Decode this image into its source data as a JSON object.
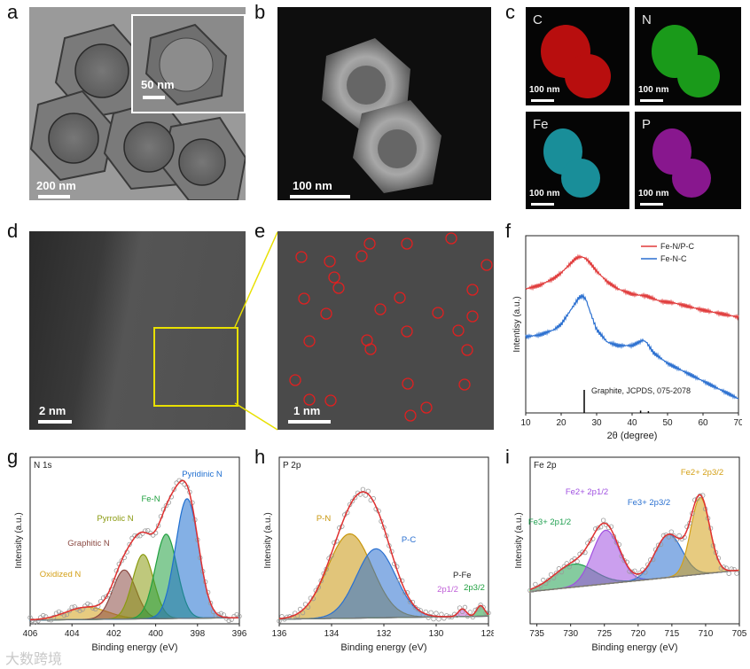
{
  "panels": {
    "a": {
      "label": "a",
      "scalebar": "200 nm",
      "inset_scalebar": "50 nm"
    },
    "b": {
      "label": "b",
      "scalebar": "100 nm"
    },
    "c": {
      "label": "c",
      "maps": [
        {
          "element": "C",
          "color": "#e01010",
          "scalebar": "100 nm"
        },
        {
          "element": "N",
          "color": "#22cc22",
          "scalebar": "100 nm"
        },
        {
          "element": "Fe",
          "color": "#22c8d8",
          "scalebar": "100 nm"
        },
        {
          "element": "P",
          "color": "#c020c8",
          "scalebar": "100 nm"
        }
      ]
    },
    "d": {
      "label": "d",
      "scalebar": "2 nm"
    },
    "e": {
      "label": "e",
      "scalebar": "1 nm"
    },
    "f": {
      "label": "f"
    },
    "g": {
      "label": "g",
      "title": "N 1s"
    },
    "h": {
      "label": "h",
      "title": "P 2p"
    },
    "i": {
      "label": "i",
      "title": "Fe 2p"
    }
  },
  "watermark": "大数跨境",
  "chart_data": [
    {
      "panel": "f",
      "type": "line",
      "xlabel": "2θ (degree)",
      "ylabel": "Intentisy (a.u.)",
      "xlim": [
        10,
        70
      ],
      "xticks": [
        10,
        20,
        30,
        40,
        50,
        60,
        70
      ],
      "legend_position": "top-right",
      "series": [
        {
          "name": "Fe-N/P-C",
          "color": "#e03a3a",
          "x": [
            10,
            14,
            18,
            20,
            22,
            24,
            25,
            26,
            27,
            28,
            30,
            33,
            36,
            40,
            44,
            48,
            52,
            56,
            60,
            65,
            70
          ],
          "y": [
            0.7,
            0.72,
            0.76,
            0.79,
            0.83,
            0.87,
            0.88,
            0.88,
            0.87,
            0.85,
            0.8,
            0.74,
            0.7,
            0.67,
            0.66,
            0.63,
            0.62,
            0.6,
            0.58,
            0.56,
            0.54
          ]
        },
        {
          "name": "Fe-N-C",
          "color": "#2a6fd0",
          "x": [
            10,
            14,
            18,
            20,
            22,
            24,
            25,
            26,
            27,
            28,
            30,
            33,
            36,
            40,
            42,
            43,
            44,
            46,
            50,
            54,
            58,
            62,
            66,
            70
          ],
          "y": [
            0.43,
            0.44,
            0.47,
            0.5,
            0.56,
            0.62,
            0.65,
            0.66,
            0.64,
            0.58,
            0.47,
            0.4,
            0.38,
            0.38,
            0.4,
            0.41,
            0.4,
            0.34,
            0.28,
            0.24,
            0.2,
            0.16,
            0.12,
            0.08
          ]
        }
      ],
      "reference": {
        "label": "Graphite, JCPDS, 075-2078",
        "peaks": [
          {
            "x": 26.5,
            "h": 0.2
          },
          {
            "x": 42.4,
            "h": 0.02
          },
          {
            "x": 44.6,
            "h": 0.015
          }
        ]
      }
    },
    {
      "panel": "g",
      "type": "line",
      "xlabel": "Binding energy (eV)",
      "ylabel": "Intensity (a.u.)",
      "xlim": [
        406,
        396
      ],
      "xticks": [
        406,
        404,
        402,
        400,
        398,
        396
      ],
      "ylim": [
        0,
        1
      ],
      "baseline": 0.04,
      "components": [
        {
          "name": "Oxidized N",
          "center": 403.3,
          "sigma": 1.0,
          "amp": 0.08,
          "color": "#d4a017"
        },
        {
          "name": "Graphitic N",
          "center": 401.5,
          "sigma": 0.55,
          "amp": 0.32,
          "color": "#8b4a43"
        },
        {
          "name": "Pyrrolic N",
          "center": 400.6,
          "sigma": 0.5,
          "amp": 0.42,
          "color": "#8a9a10"
        },
        {
          "name": "Fe-N",
          "center": 399.5,
          "sigma": 0.52,
          "amp": 0.55,
          "color": "#20a040"
        },
        {
          "name": "Pyridinic N",
          "center": 398.5,
          "sigma": 0.55,
          "amp": 0.78,
          "color": "#1f6fd0"
        }
      ]
    },
    {
      "panel": "h",
      "type": "line",
      "xlabel": "Binding energy (eV)",
      "ylabel": "Intensity (a.u.)",
      "xlim": [
        136,
        128
      ],
      "xticks": [
        136,
        134,
        132,
        130,
        128
      ],
      "ylim": [
        0,
        1
      ],
      "baseline": 0.05,
      "components": [
        {
          "name": "P-N",
          "center": 133.3,
          "sigma": 0.85,
          "amp": 0.55,
          "color": "#c8960c"
        },
        {
          "name": "P-C",
          "center": 132.3,
          "sigma": 0.75,
          "amp": 0.45,
          "color": "#2a70d0"
        },
        {
          "name": "2p1/2",
          "center": 129.0,
          "sigma": 0.15,
          "amp": 0.05,
          "color": "#c060d8"
        },
        {
          "name": "2p3/2",
          "center": 128.3,
          "sigma": 0.15,
          "amp": 0.07,
          "color": "#20a040"
        }
      ],
      "annotation": "P-Fe"
    },
    {
      "panel": "i",
      "type": "line",
      "xlabel": "Binding energy (eV)",
      "ylabel": "Intensity (a.u.)",
      "xlim": [
        736,
        705
      ],
      "xticks": [
        735,
        730,
        725,
        720,
        715,
        710,
        705
      ],
      "ylim": [
        0,
        1
      ],
      "baseline": 0.35,
      "components": [
        {
          "name": "Fe3+ 2p1/2",
          "center": 729.5,
          "sigma": 3.0,
          "amp": 0.15,
          "color": "#20a050"
        },
        {
          "name": "Fe2+ 2p1/2",
          "center": 724.8,
          "sigma": 2.0,
          "amp": 0.35,
          "color": "#a050e0"
        },
        {
          "name": "Fe3+ 2p3/2",
          "center": 715.5,
          "sigma": 2.0,
          "amp": 0.28,
          "color": "#2a70d0"
        },
        {
          "name": "Fe2+ 2p3/2",
          "center": 710.8,
          "sigma": 1.4,
          "amp": 0.5,
          "color": "#d4a017"
        }
      ]
    }
  ]
}
